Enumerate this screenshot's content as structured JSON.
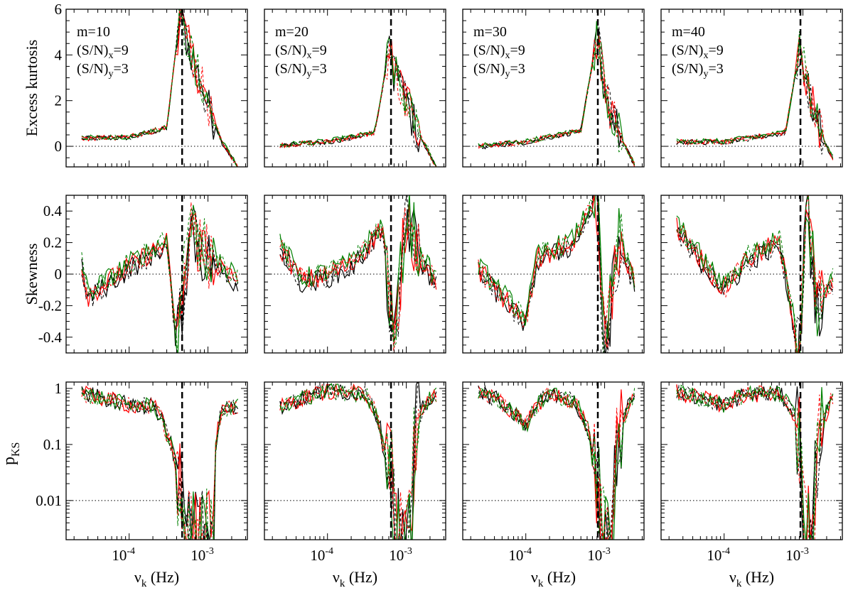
{
  "chart_data": {
    "type": "line",
    "layout": "3 rows x 4 columns small multiples, shared log x-axis",
    "xlabel": "ν_k (Hz)",
    "xlabel_main": "ν",
    "xlabel_sub": "k",
    "xlabel_tail": "(Hz)",
    "x_scale": "log",
    "xlim": [
      1.585e-05,
      0.003162
    ],
    "x_ticks": [
      {
        "value": 0.0001,
        "base": "10",
        "exp": "-4"
      },
      {
        "value": 0.001,
        "base": "10",
        "exp": "-3"
      }
    ],
    "series_colors": {
      "black": "#000000",
      "red": "#ff0000",
      "green": "#008000"
    },
    "line_styles": [
      "solid",
      "dashed"
    ],
    "rows": [
      {
        "key": "kurtosis",
        "ylabel": "Excess kurtosis",
        "y_scale": "linear",
        "ylim": [
          -0.9,
          6
        ],
        "y_ticks": [
          {
            "value": 0,
            "label": "0"
          },
          {
            "value": 2,
            "label": "2"
          },
          {
            "value": 4,
            "label": "4"
          },
          {
            "value": 6,
            "label": "6"
          }
        ],
        "reference_line": 0
      },
      {
        "key": "skewness",
        "ylabel": "Skewness",
        "y_scale": "linear",
        "ylim": [
          -0.5,
          0.5
        ],
        "y_ticks": [
          {
            "value": -0.4,
            "label": "-0.4"
          },
          {
            "value": -0.2,
            "label": "-0.2"
          },
          {
            "value": 0,
            "label": "0"
          },
          {
            "value": 0.2,
            "label": "0.2"
          },
          {
            "value": 0.4,
            "label": "0.4"
          }
        ],
        "reference_line": 0
      },
      {
        "key": "pks",
        "ylabel": "p_KS",
        "ylabel_main": "p",
        "ylabel_sub": "KS",
        "y_scale": "log",
        "ylim": [
          0.002,
          1.3
        ],
        "y_ticks": [
          {
            "value": 0.01,
            "label": "0.01"
          },
          {
            "value": 0.1,
            "label": "0.1"
          },
          {
            "value": 1,
            "label": "1"
          }
        ],
        "reference_line": 0.01
      }
    ],
    "panels": [
      {
        "m_label": "m=10",
        "sn_x": "(S/N)",
        "sn_x_sub": "x",
        "sn_x_val": "=9",
        "sn_y": "(S/N)",
        "sn_y_sub": "y",
        "sn_y_val": "=3",
        "nu_c": 0.00047,
        "peak_start": 0.0004,
        "peak_end": 0.0012
      },
      {
        "m_label": "m=20",
        "sn_x": "(S/N)",
        "sn_x_sub": "x",
        "sn_x_val": "=9",
        "sn_y": "(S/N)",
        "sn_y_sub": "y",
        "sn_y_val": "=3",
        "nu_c": 0.00064,
        "peak_start": 0.00055,
        "peak_end": 0.0015
      },
      {
        "m_label": "m=30",
        "sn_x": "(S/N)",
        "sn_x_sub": "x",
        "sn_x_val": "=9",
        "sn_y": "(S/N)",
        "sn_y_sub": "y",
        "sn_y_val": "=3",
        "nu_c": 0.00082,
        "peak_start": 0.0007,
        "peak_end": 0.0017
      },
      {
        "m_label": "m=40",
        "sn_x": "(S/N)",
        "sn_x_sub": "x",
        "sn_x_val": "=9",
        "sn_y": "(S/N)",
        "sn_y_sub": "y",
        "sn_y_val": "=3",
        "nu_c": 0.00093,
        "peak_start": 0.0008,
        "peak_end": 0.0018
      }
    ],
    "series_values": {
      "kurtosis": [
        {
          "x": [
            2.5e-05,
            0.0001,
            0.0003,
            0.00045,
            0.0005,
            0.0007,
            0.001,
            0.0015,
            0.0024
          ],
          "y": [
            0.35,
            0.4,
            0.8,
            6,
            5,
            3.5,
            1.8,
            0.2,
            -0.9
          ]
        },
        {
          "x": [
            2.5e-05,
            0.0001,
            0.0004,
            0.00062,
            0.0007,
            0.0009,
            0.0012,
            0.0017,
            0.0024
          ],
          "y": [
            0.05,
            0.2,
            0.6,
            4.5,
            3.2,
            2.5,
            1.2,
            0.1,
            -0.9
          ]
        },
        {
          "x": [
            2.5e-05,
            0.0001,
            0.0005,
            0.00082,
            0.0009,
            0.001,
            0.0012,
            0.0017,
            0.0024
          ],
          "y": [
            0.0,
            0.2,
            0.7,
            5,
            3.8,
            2.5,
            1.5,
            0.2,
            -0.8
          ]
        },
        {
          "x": [
            2.5e-05,
            0.0001,
            0.0006,
            0.00093,
            0.001,
            0.0011,
            0.0014,
            0.0018,
            0.0024
          ],
          "y": [
            0.2,
            0.2,
            0.6,
            4.5,
            3.8,
            2.7,
            1.5,
            0.3,
            -0.5
          ]
        }
      ],
      "skewness": [
        {
          "x": [
            2.5e-05,
            3e-05,
            0.0001,
            0.0003,
            0.0004,
            0.0006,
            0.001,
            0.0024
          ],
          "y": [
            0.05,
            -0.14,
            0.05,
            0.2,
            -0.45,
            0.3,
            0.1,
            -0.05
          ]
        },
        {
          "x": [
            2.5e-05,
            5e-05,
            0.0002,
            0.0005,
            0.0007,
            0.001,
            0.0015,
            0.0024
          ],
          "y": [
            0.17,
            -0.05,
            0.05,
            0.3,
            -0.5,
            0.4,
            0.1,
            -0.05
          ]
        },
        {
          "x": [
            2.5e-05,
            0.0001,
            0.00014,
            0.0004,
            0.0008,
            0.001,
            0.0015,
            0.0024
          ],
          "y": [
            0.03,
            -0.3,
            0.1,
            0.2,
            0.5,
            -0.5,
            0.2,
            -0.05
          ]
        },
        {
          "x": [
            2.5e-05,
            0.0001,
            0.0002,
            0.0005,
            0.0009,
            0.0011,
            0.0015,
            0.0024
          ],
          "y": [
            0.3,
            -0.1,
            0.1,
            0.2,
            -0.5,
            0.5,
            -0.2,
            -0.05
          ]
        }
      ],
      "pks": [
        {
          "x": [
            2.5e-05,
            0.0001,
            0.0002,
            0.0003,
            0.0004,
            0.0005,
            0.0007,
            0.0012,
            0.0015,
            0.0024
          ],
          "y": [
            0.8,
            0.5,
            0.5,
            0.15,
            0.03,
            0.002,
            0.002,
            0.003,
            0.4,
            0.5
          ]
        },
        {
          "x": [
            2.5e-05,
            0.0001,
            0.0003,
            0.0005,
            0.0007,
            0.0009,
            0.0012,
            0.0017,
            0.0024
          ],
          "y": [
            0.45,
            0.9,
            0.8,
            0.1,
            0.005,
            0.002,
            0.002,
            0.5,
            0.8
          ]
        },
        {
          "x": [
            2.5e-05,
            0.0001,
            0.0002,
            0.0004,
            0.0007,
            0.0009,
            0.0013,
            0.0018,
            0.0024
          ],
          "y": [
            0.9,
            0.2,
            0.8,
            0.6,
            0.05,
            0.003,
            0.002,
            0.3,
            0.8
          ]
        },
        {
          "x": [
            2.5e-05,
            0.0001,
            0.0002,
            0.0005,
            0.0008,
            0.001,
            0.0014,
            0.0019,
            0.0024
          ],
          "y": [
            0.85,
            0.5,
            0.8,
            0.8,
            0.3,
            0.003,
            0.002,
            0.3,
            0.7
          ]
        }
      ]
    }
  }
}
